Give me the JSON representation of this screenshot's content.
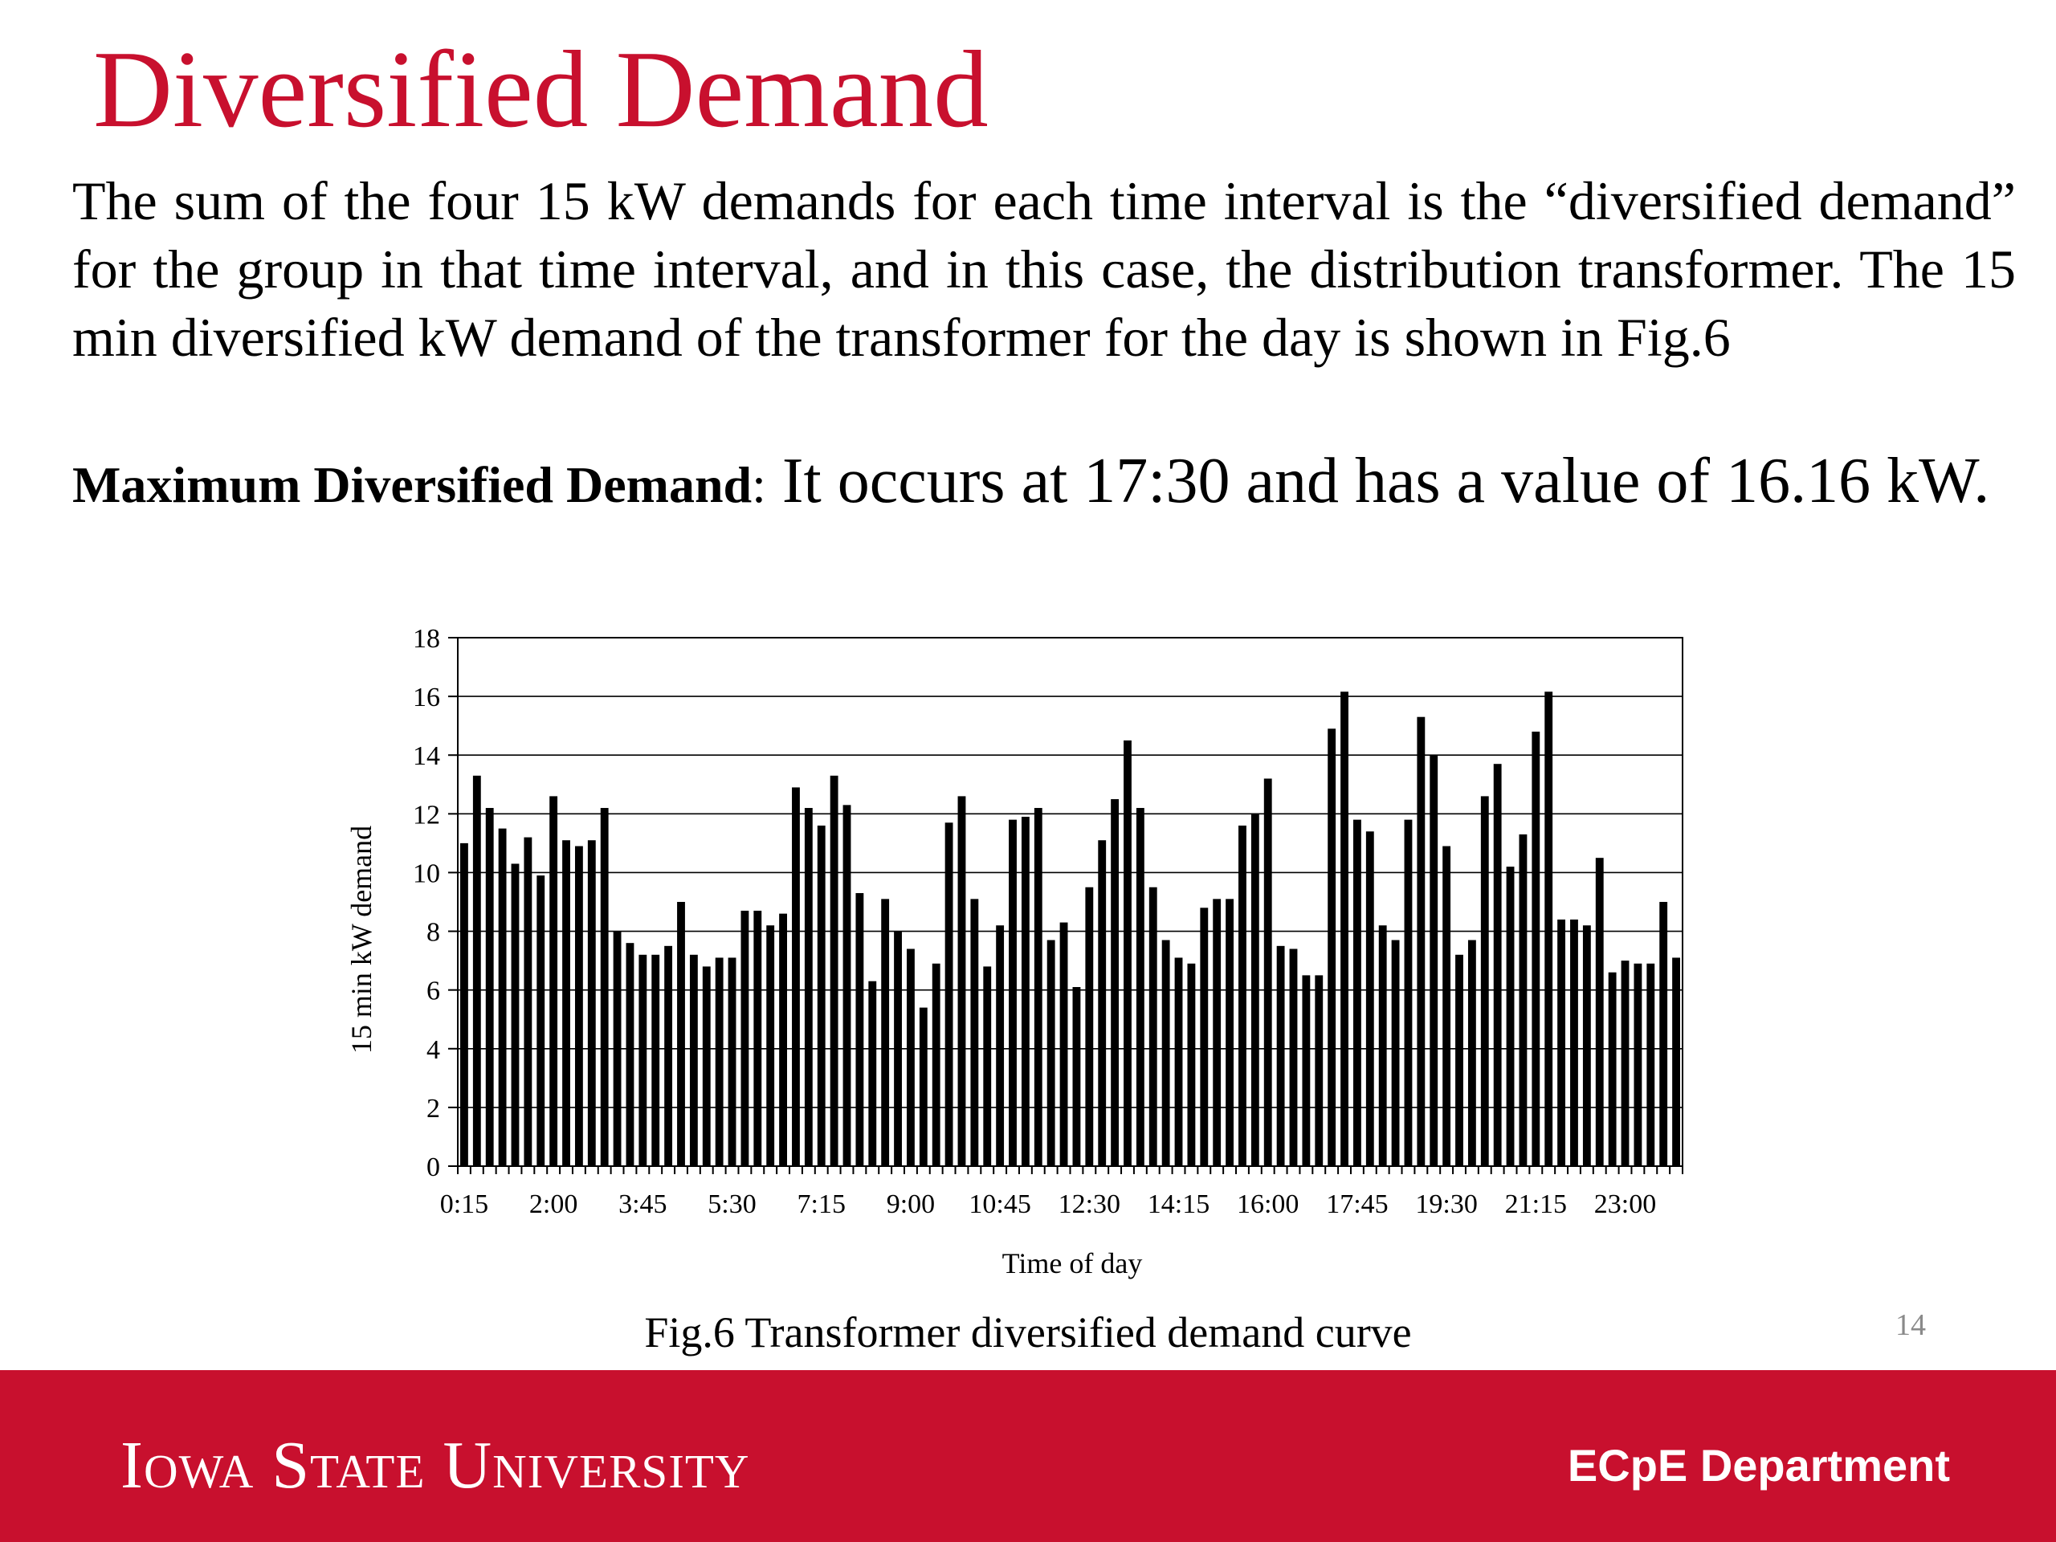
{
  "slide": {
    "title": "Diversified Demand",
    "paragraph": "The sum of the four 15 kW demands for each time interval is the “diversified demand” for the group in that time interval, and in this case, the distribution transformer. The 15 min diversified kW demand of the transformer for the day is shown in Fig.6",
    "max_label": "Maximum Diversified Demand",
    "max_separator": ":",
    "max_text": " It occurs at 17:30 and has a value of 16.16 kW.",
    "caption": "Fig.6 Transformer diversified demand curve",
    "page_number": "14"
  },
  "footer": {
    "university": "Iowa State University",
    "department": "ECpE Department",
    "background_color": "#c8102e"
  },
  "chart_data": {
    "type": "bar",
    "xlabel": "Time of day",
    "ylabel": "15 min kW demand",
    "ylim": [
      0,
      18
    ],
    "yticks": [
      0,
      2,
      4,
      6,
      8,
      10,
      12,
      14,
      16,
      18
    ],
    "grid": true,
    "bar_color": "#000000",
    "tick_labels": [
      "0:15",
      "2:00",
      "3:45",
      "5:30",
      "7:15",
      "9:00",
      "10:45",
      "12:30",
      "14:15",
      "16:00",
      "17:45",
      "19:30",
      "21:15",
      "23:00"
    ],
    "values": [
      11.0,
      13.3,
      12.2,
      11.5,
      10.3,
      11.2,
      9.9,
      12.6,
      11.1,
      10.9,
      11.1,
      12.2,
      8.0,
      7.6,
      7.2,
      7.2,
      7.5,
      9.0,
      7.2,
      6.8,
      7.1,
      7.1,
      8.7,
      8.7,
      8.2,
      8.6,
      12.9,
      12.2,
      11.6,
      13.3,
      12.3,
      9.3,
      6.3,
      9.1,
      8.0,
      7.4,
      5.4,
      6.9,
      11.7,
      12.6,
      9.1,
      6.8,
      8.2,
      11.8,
      11.9,
      12.2,
      7.7,
      8.3,
      6.1,
      9.5,
      11.1,
      12.5,
      14.5,
      12.2,
      9.5,
      7.7,
      7.1,
      6.9,
      8.8,
      9.1,
      9.1,
      11.6,
      12.0,
      13.2,
      7.5,
      7.4,
      6.5,
      6.5,
      14.9,
      16.16,
      11.8,
      11.4,
      8.2,
      7.7,
      11.8,
      15.3,
      14.0,
      10.9,
      7.2,
      7.7,
      12.6,
      13.7,
      10.2,
      11.3,
      14.8,
      16.16,
      8.4,
      8.4,
      8.2,
      10.5,
      6.6,
      7.0,
      6.9,
      6.9,
      9.0,
      7.1
    ]
  }
}
